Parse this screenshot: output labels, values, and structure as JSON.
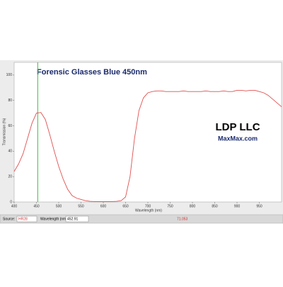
{
  "chart_data": {
    "type": "line",
    "title": "Forensic Glasses Blue 450nm",
    "x_label": "Wavelength (nm)",
    "y_label": "Transmission (%)",
    "x": [
      400,
      410,
      420,
      430,
      440,
      450,
      460,
      470,
      480,
      490,
      500,
      510,
      520,
      530,
      540,
      550,
      560,
      570,
      580,
      590,
      600,
      610,
      620,
      630,
      640,
      650,
      660,
      670,
      680,
      690,
      700,
      710,
      720,
      730,
      740,
      750,
      760,
      770,
      780,
      790,
      800,
      810,
      820,
      830,
      840,
      850,
      860,
      870,
      880,
      890,
      900,
      910,
      920,
      930,
      940,
      950,
      960,
      970,
      980,
      990,
      1000
    ],
    "series": [
      {
        "name": "Transmission",
        "color": "#e05050",
        "values": [
          24,
          30,
          38,
          50,
          62,
          70,
          70.5,
          65,
          53,
          40,
          28,
          18,
          10,
          5,
          3,
          2,
          1,
          0.5,
          0.3,
          0.3,
          0.3,
          0.3,
          0.3,
          0.5,
          1,
          4,
          20,
          50,
          72,
          82,
          86,
          87,
          87.5,
          87.5,
          87,
          87,
          87,
          87,
          87.5,
          87,
          87,
          87,
          87,
          87.5,
          87,
          87,
          87,
          87.5,
          87,
          87,
          88,
          88,
          87.5,
          88,
          88,
          87,
          86,
          84,
          81,
          78,
          75
        ]
      }
    ],
    "xlim": [
      400,
      1000
    ],
    "ylim": [
      0,
      110
    ],
    "xticks": [
      400,
      450,
      500,
      550,
      600,
      650,
      700,
      750,
      800,
      850,
      900,
      950
    ],
    "yticks": [
      0,
      20,
      40,
      60,
      80,
      100
    ],
    "grid": false,
    "cursor": {
      "x": 452.91,
      "y": 71.053,
      "color": "#3cc03c"
    },
    "logo": {
      "line1": "LDP LLC",
      "line2": "MaxMax.com"
    },
    "toolbar": {
      "source_label": "Source:",
      "source_value": "HR28",
      "wavelength_label": "Wavelength (nm):"
    }
  }
}
